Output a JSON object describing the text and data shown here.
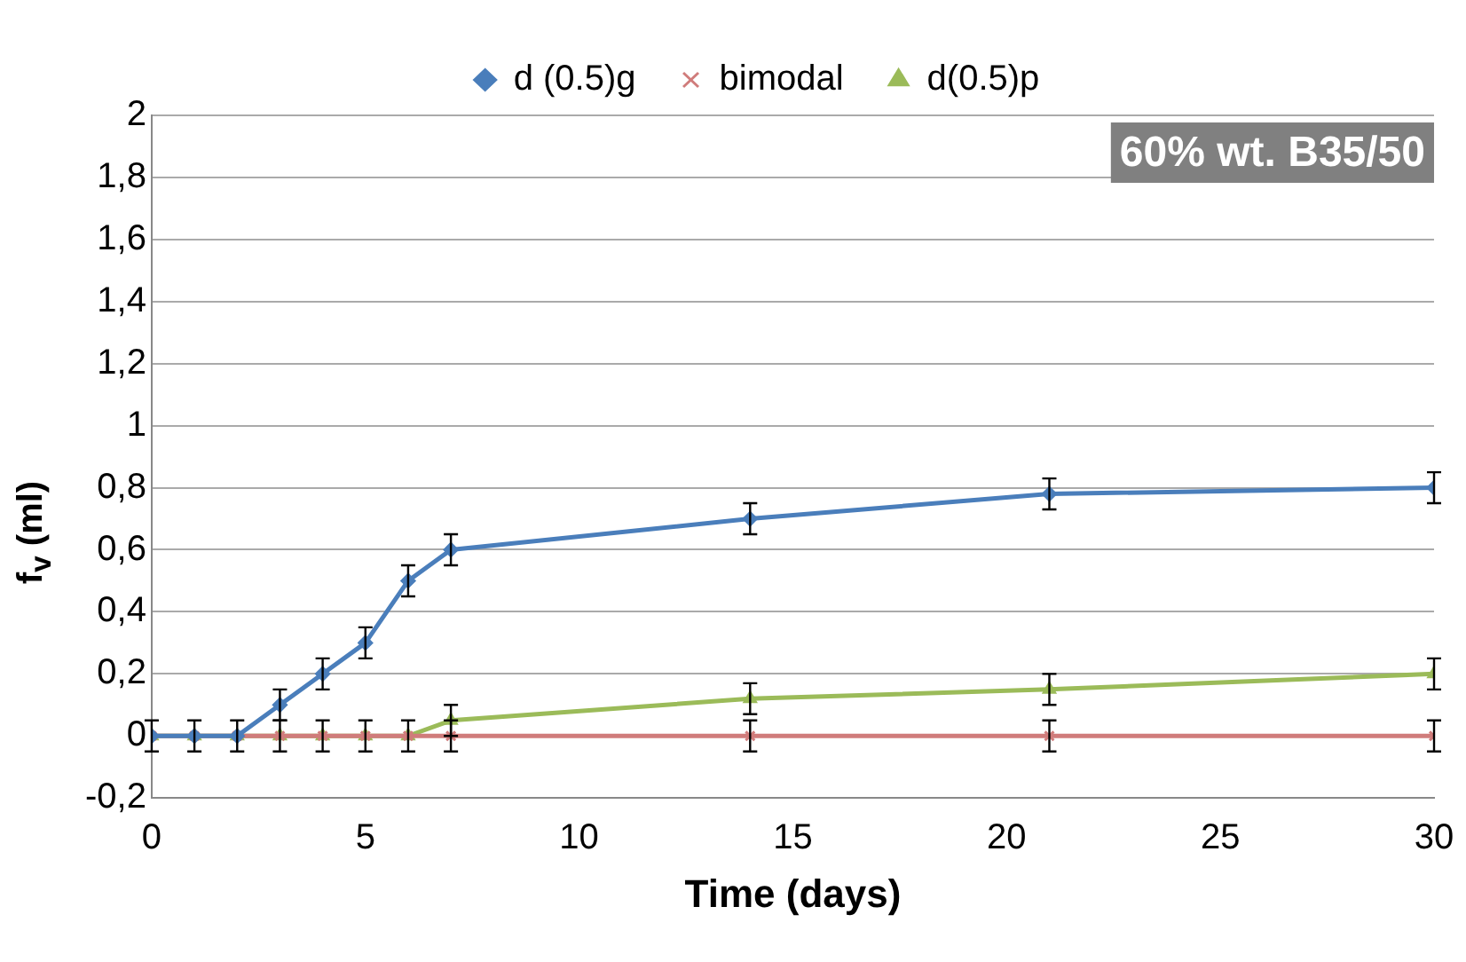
{
  "chart_data": {
    "type": "line",
    "xlabel": "Time (days)",
    "ylabel": "f$_{v}$ (ml)",
    "x": [
      0,
      1,
      2,
      3,
      4,
      5,
      6,
      7,
      14,
      21,
      30
    ],
    "series": [
      {
        "name": "d (0.5)g",
        "color": "#4a7ebb",
        "marker": "diamond",
        "values": [
          0,
          0,
          0,
          0.1,
          0.2,
          0.3,
          0.5,
          0.6,
          0.7,
          0.78,
          0.8
        ],
        "errors": [
          0.05,
          0.05,
          0.05,
          0.05,
          0.05,
          0.05,
          0.05,
          0.05,
          0.05,
          0.05,
          0.05
        ]
      },
      {
        "name": "bimodal",
        "color": "#d07c7b",
        "marker": "cross",
        "values": [
          0,
          0,
          0,
          0,
          0,
          0,
          0,
          0,
          0,
          0,
          0
        ],
        "errors": [
          0.05,
          0.05,
          0.05,
          0.05,
          0.05,
          0.05,
          0.05,
          0.05,
          0.05,
          0.05,
          0.05
        ]
      },
      {
        "name": "d(0.5)p",
        "color": "#9bbb59",
        "marker": "triangle",
        "values": [
          0,
          0,
          0,
          0,
          0,
          0,
          0,
          0.05,
          0.12,
          0.15,
          0.2
        ],
        "errors": [
          0.05,
          0.05,
          0.05,
          0.05,
          0.05,
          0.05,
          0.05,
          0.05,
          0.05,
          0.05,
          0.05
        ]
      }
    ],
    "xlim": [
      0,
      30
    ],
    "xticks": [
      0,
      5,
      10,
      15,
      20,
      25,
      30
    ],
    "ylim": [
      -0.2,
      2
    ],
    "yticks": [
      {
        "value": -0.2,
        "label": "-0,2"
      },
      0,
      {
        "value": 0.2,
        "label": "0,2"
      },
      {
        "value": 0.4,
        "label": "0,4"
      },
      {
        "value": 0.6,
        "label": "0,6"
      },
      {
        "value": 0.8,
        "label": "0,8"
      },
      1,
      {
        "value": 1.2,
        "label": "1,2"
      },
      {
        "value": 1.4,
        "label": "1,4"
      },
      {
        "value": 1.6,
        "label": "1,6"
      },
      {
        "value": 1.8,
        "label": "1,8"
      },
      2
    ],
    "grid": "y",
    "legend": "top",
    "line_style": "solid",
    "annotations": [
      "60% wt. B35/50"
    ]
  }
}
